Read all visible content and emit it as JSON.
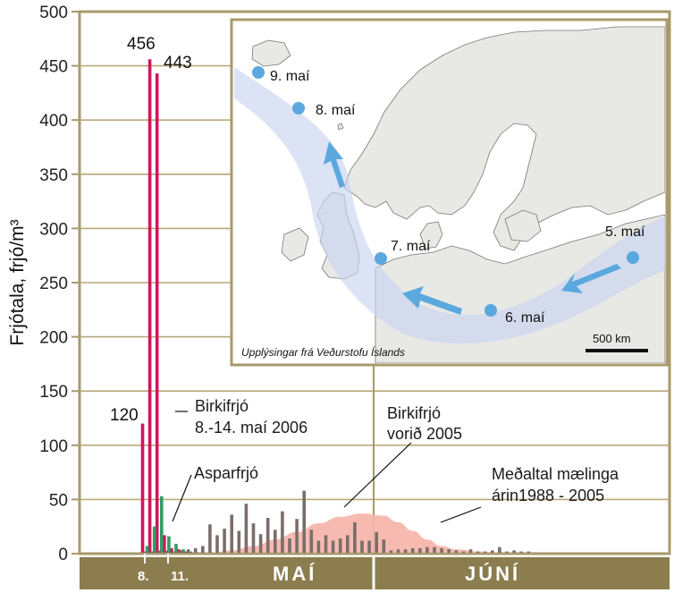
{
  "chart_data": {
    "type": "bar",
    "ylabel": "Frjótala, frjó/m³",
    "ylim": [
      0,
      500
    ],
    "yticks": [
      0,
      50,
      100,
      150,
      200,
      250,
      300,
      350,
      400,
      450,
      500
    ],
    "months": [
      "MAÍ",
      "JÚNÍ"
    ],
    "day_labels": [
      "8.",
      "11."
    ],
    "series": [
      {
        "name": "Birkifrjó 8.-14. maí 2006",
        "color": "#d0155f",
        "points": [
          {
            "day": 8,
            "value": 120
          },
          {
            "day": 9,
            "value": 456
          },
          {
            "day": 10,
            "value": 443
          },
          {
            "day": 11,
            "value": 17
          },
          {
            "day": 12,
            "value": 5
          },
          {
            "day": 13,
            "value": 4
          },
          {
            "day": 14,
            "value": 2
          }
        ]
      },
      {
        "name": "Asparfrjó",
        "color": "#2e9e62",
        "points": [
          {
            "day": 8,
            "value": 7
          },
          {
            "day": 9,
            "value": 25
          },
          {
            "day": 10,
            "value": 53
          },
          {
            "day": 11,
            "value": 16
          },
          {
            "day": 12,
            "value": 9
          },
          {
            "day": 13,
            "value": 4
          },
          {
            "day": 14,
            "value": 2
          }
        ]
      },
      {
        "name": "Birkifrjó vorið 2005",
        "color": "#7a6e6a",
        "points": [
          {
            "day": 8,
            "value": 2
          },
          {
            "day": 9,
            "value": 2
          },
          {
            "day": 10,
            "value": 3
          },
          {
            "day": 11,
            "value": 3
          },
          {
            "day": 12,
            "value": 2
          },
          {
            "day": 13,
            "value": 3
          },
          {
            "day": 14,
            "value": 4
          },
          {
            "day": 15,
            "value": 5
          },
          {
            "day": 16,
            "value": 7
          },
          {
            "day": 17,
            "value": 27
          },
          {
            "day": 18,
            "value": 17
          },
          {
            "day": 19,
            "value": 23
          },
          {
            "day": 20,
            "value": 36
          },
          {
            "day": 21,
            "value": 21
          },
          {
            "day": 22,
            "value": 46
          },
          {
            "day": 23,
            "value": 28
          },
          {
            "day": 24,
            "value": 18
          },
          {
            "day": 25,
            "value": 33
          },
          {
            "day": 26,
            "value": 22
          },
          {
            "day": 27,
            "value": 39
          },
          {
            "day": 28,
            "value": 14
          },
          {
            "day": 29,
            "value": 32
          },
          {
            "day": 30,
            "value": 58
          },
          {
            "day": 31,
            "value": 22
          },
          {
            "day": 32,
            "value": 12
          },
          {
            "day": 33,
            "value": 17
          },
          {
            "day": 34,
            "value": 12
          },
          {
            "day": 35,
            "value": 14
          },
          {
            "day": 36,
            "value": 17
          },
          {
            "day": 37,
            "value": 29
          },
          {
            "day": 38,
            "value": 12
          },
          {
            "day": 39,
            "value": 12
          },
          {
            "day": 40,
            "value": 20
          },
          {
            "day": 41,
            "value": 13
          },
          {
            "day": 42,
            "value": 3
          },
          {
            "day": 43,
            "value": 4
          },
          {
            "day": 44,
            "value": 4
          },
          {
            "day": 45,
            "value": 5
          },
          {
            "day": 46,
            "value": 5
          },
          {
            "day": 47,
            "value": 6
          },
          {
            "day": 48,
            "value": 6
          },
          {
            "day": 49,
            "value": 5
          },
          {
            "day": 50,
            "value": 4
          },
          {
            "day": 51,
            "value": 3
          },
          {
            "day": 52,
            "value": 2
          },
          {
            "day": 53,
            "value": 4
          },
          {
            "day": 54,
            "value": 2
          },
          {
            "day": 55,
            "value": 2
          },
          {
            "day": 56,
            "value": 3
          },
          {
            "day": 57,
            "value": 6
          },
          {
            "day": 58,
            "value": 2
          },
          {
            "day": 59,
            "value": 3
          },
          {
            "day": 60,
            "value": 2
          },
          {
            "day": 61,
            "value": 2
          },
          {
            "day": 62,
            "value": 1
          }
        ]
      },
      {
        "name": "Meðaltal mælinga árin1988 - 2005",
        "type": "area",
        "color": "#f6b3a8",
        "points": [
          {
            "day": 14,
            "value": 0
          },
          {
            "day": 17,
            "value": 1
          },
          {
            "day": 20,
            "value": 3
          },
          {
            "day": 23,
            "value": 7
          },
          {
            "day": 26,
            "value": 13
          },
          {
            "day": 29,
            "value": 20
          },
          {
            "day": 32,
            "value": 28
          },
          {
            "day": 35,
            "value": 34
          },
          {
            "day": 38,
            "value": 37
          },
          {
            "day": 41,
            "value": 35
          },
          {
            "day": 43,
            "value": 29
          },
          {
            "day": 45,
            "value": 21
          },
          {
            "day": 47,
            "value": 13
          },
          {
            "day": 49,
            "value": 7
          },
          {
            "day": 51,
            "value": 4
          },
          {
            "day": 54,
            "value": 2
          },
          {
            "day": 58,
            "value": 1
          },
          {
            "day": 62,
            "value": 0
          }
        ]
      }
    ],
    "data_labels": [
      "120",
      "456",
      "443"
    ],
    "annotations": {
      "birki2006": [
        "Birkifrjó",
        "8.-14. maí 2006"
      ],
      "aspar": "Asparfrjó",
      "birki2005": [
        "Birkifrjó",
        "vorið 2005"
      ],
      "medaltal": [
        "Meðaltal mælinga",
        "árin1988 - 2005"
      ]
    }
  },
  "map": {
    "points": [
      "9. maí",
      "8. maí",
      "7. maí",
      "6. maí",
      "5. maí"
    ],
    "credit": "Upplýsingar frá Veðurstofu Íslands",
    "scale": "500 km"
  },
  "colors": {
    "frame": "#a89a6a",
    "band": "#8b7d4e",
    "grid": "#b8a979",
    "birki2006": "#d0155f",
    "aspar": "#2e9e62",
    "birki2005": "#7a6e6a",
    "average": "#f6b3a8",
    "track": "#c8d4ef",
    "dots": "#5aa8de"
  }
}
